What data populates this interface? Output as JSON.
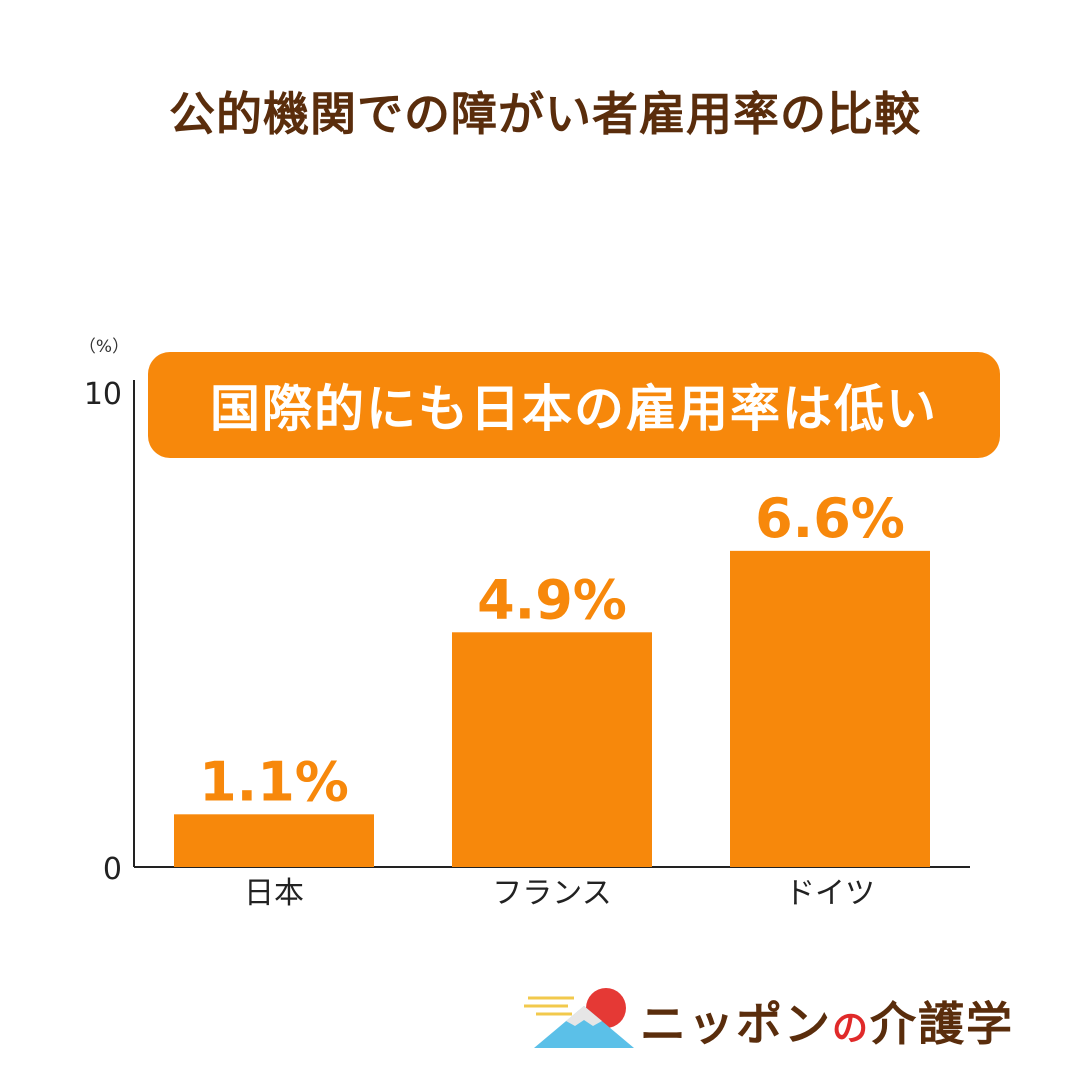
{
  "title": "公的機関での障がい者雇用率の比較",
  "callout": "国際的にも日本の雇用率は低い",
  "logo": {
    "text_main": "ニッポン",
    "text_no": "の",
    "text_tail": "介護学"
  },
  "colors": {
    "bar": "#f7880b",
    "title": "#5a2d0c",
    "axis": "#222222"
  },
  "chart_data": {
    "type": "bar",
    "unit_label": "（%）",
    "categories": [
      "日本",
      "フランス",
      "ドイツ"
    ],
    "values": [
      1.1,
      4.9,
      6.6
    ],
    "value_labels": [
      "1.1%",
      "4.9%",
      "6.6%"
    ],
    "ylim": [
      0,
      10
    ],
    "yticks": [
      "0",
      "10"
    ],
    "grid": false
  }
}
